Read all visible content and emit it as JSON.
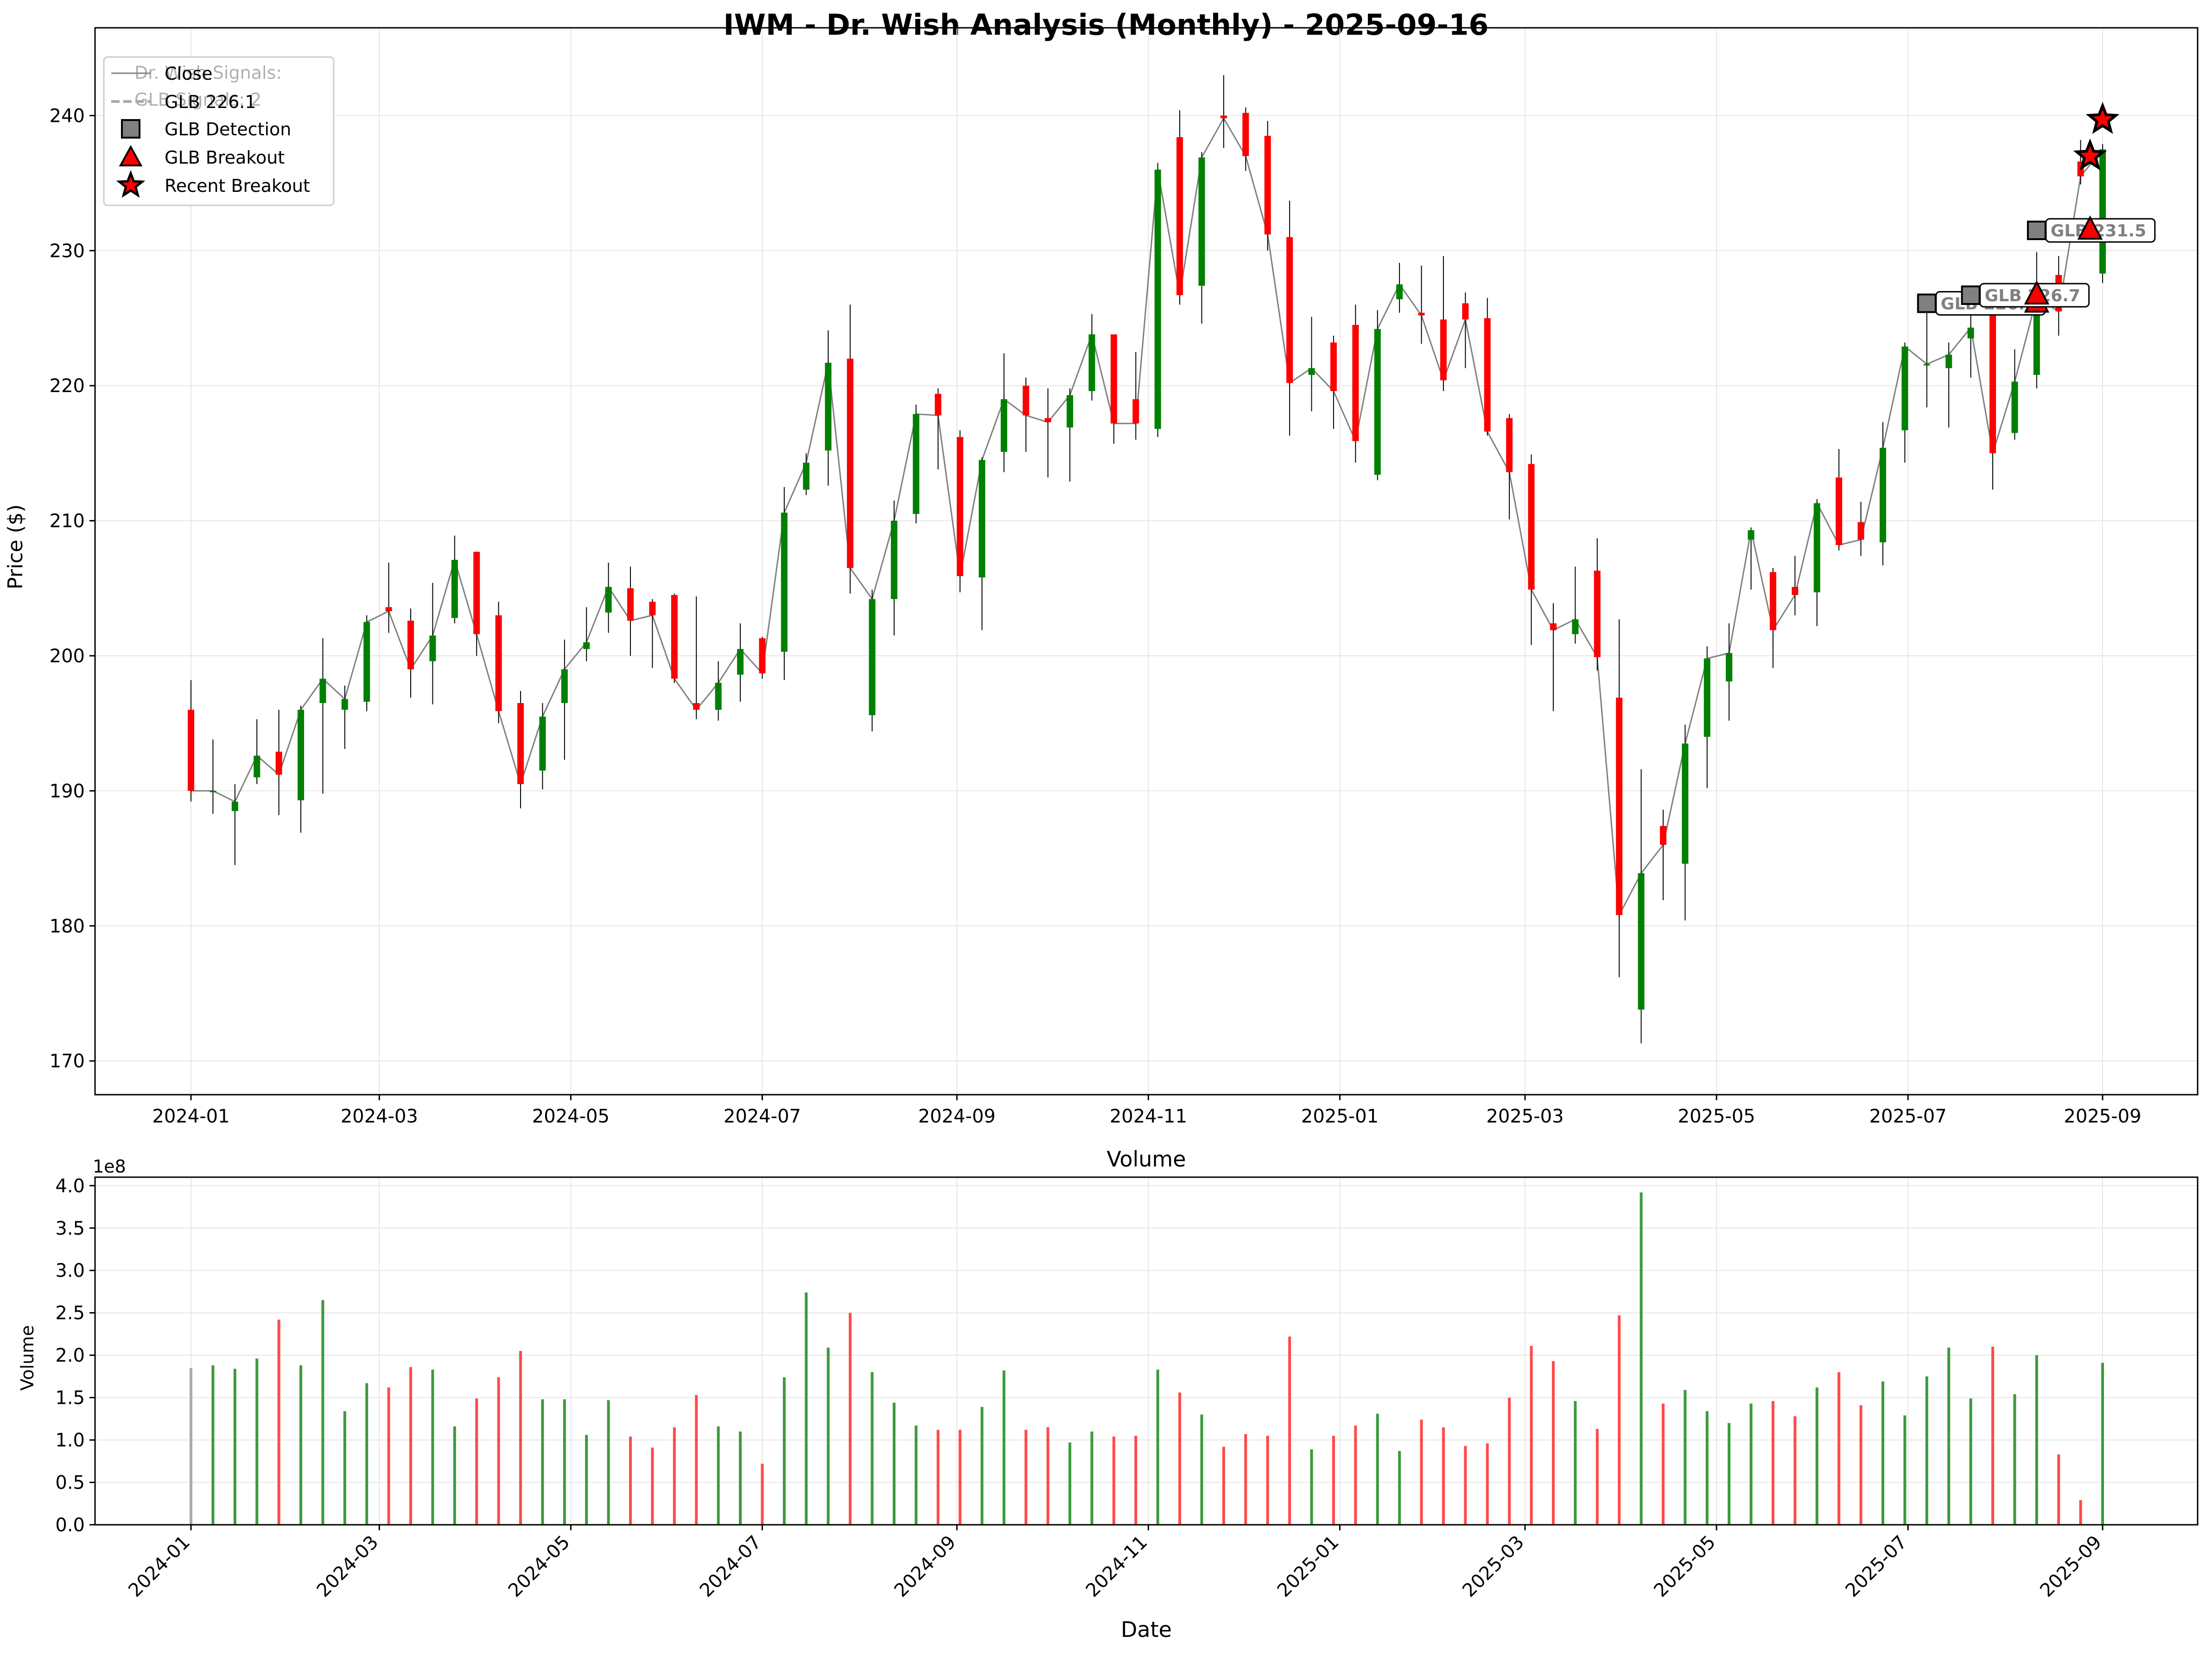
{
  "colors": {
    "up": "#008000",
    "down": "#ff0000",
    "close_line": "#808080",
    "detection_fill": "#808080",
    "breakout_fill": "#ff0000",
    "grid": "#e6e6e6"
  },
  "chart_data": [
    {
      "type": "candlestick",
      "title": "IWM - Dr. Wish Analysis (Monthly) - 2025-09-16",
      "xlabel": "",
      "ylabel": "Price ($)",
      "ylim": [
        167.5,
        246.5
      ],
      "y_ticks": [
        170,
        180,
        190,
        200,
        210,
        220,
        230,
        240
      ],
      "x_ticks": [
        "2024-01",
        "2024-03",
        "2024-05",
        "2024-07",
        "2024-09",
        "2024-11",
        "2025-01",
        "2025-03",
        "2025-05",
        "2025-07",
        "2025-09"
      ],
      "grid": true,
      "legend_position": "top-left",
      "legend": [
        "Close",
        "GLB 226.1",
        "GLB Detection",
        "GLB Breakout",
        "Recent Breakout"
      ],
      "info_box_partial_text": [
        "Dr. Wish Signals:",
        "GLB Signals: 2"
      ],
      "series": [
        {
          "date": "2024-01-01",
          "o": 196.0,
          "h": 198.2,
          "l": 189.2,
          "c": 190.0
        },
        {
          "date": "2024-01-08",
          "o": 190.0,
          "h": 193.8,
          "l": 188.3,
          "c": 190.0
        },
        {
          "date": "2024-01-15",
          "o": 188.5,
          "h": 190.5,
          "l": 184.5,
          "c": 189.2
        },
        {
          "date": "2024-01-22",
          "o": 191.0,
          "h": 195.3,
          "l": 190.5,
          "c": 192.6
        },
        {
          "date": "2024-01-29",
          "o": 192.9,
          "h": 196.0,
          "l": 188.2,
          "c": 191.2
        },
        {
          "date": "2024-02-05",
          "o": 189.3,
          "h": 196.3,
          "l": 186.9,
          "c": 196.0
        },
        {
          "date": "2024-02-12",
          "o": 196.5,
          "h": 201.3,
          "l": 189.8,
          "c": 198.3
        },
        {
          "date": "2024-02-19",
          "o": 196.0,
          "h": 197.8,
          "l": 193.1,
          "c": 196.8
        },
        {
          "date": "2024-02-26",
          "o": 196.6,
          "h": 203.0,
          "l": 195.9,
          "c": 202.5
        },
        {
          "date": "2024-03-04",
          "o": 203.6,
          "h": 206.9,
          "l": 201.7,
          "c": 203.3
        },
        {
          "date": "2024-03-11",
          "o": 202.6,
          "h": 203.5,
          "l": 196.9,
          "c": 199.0
        },
        {
          "date": "2024-03-18",
          "o": 199.6,
          "h": 205.4,
          "l": 196.4,
          "c": 201.5
        },
        {
          "date": "2024-03-25",
          "o": 202.8,
          "h": 208.9,
          "l": 202.4,
          "c": 207.1
        },
        {
          "date": "2024-04-01",
          "o": 207.7,
          "h": 207.7,
          "l": 200.0,
          "c": 201.6
        },
        {
          "date": "2024-04-08",
          "o": 203.0,
          "h": 204.0,
          "l": 195.0,
          "c": 195.9
        },
        {
          "date": "2024-04-15",
          "o": 196.5,
          "h": 197.4,
          "l": 188.7,
          "c": 190.5
        },
        {
          "date": "2024-04-22",
          "o": 191.5,
          "h": 196.5,
          "l": 190.1,
          "c": 195.5
        },
        {
          "date": "2024-04-29",
          "o": 196.5,
          "h": 201.2,
          "l": 192.3,
          "c": 199.0
        },
        {
          "date": "2024-05-06",
          "o": 200.5,
          "h": 203.6,
          "l": 199.6,
          "c": 201.0
        },
        {
          "date": "2024-05-13",
          "o": 203.2,
          "h": 206.9,
          "l": 201.7,
          "c": 205.1
        },
        {
          "date": "2024-05-20",
          "o": 205.0,
          "h": 206.6,
          "l": 200.0,
          "c": 202.6
        },
        {
          "date": "2024-05-27",
          "o": 204.0,
          "h": 204.2,
          "l": 199.1,
          "c": 203.0
        },
        {
          "date": "2024-06-03",
          "o": 204.5,
          "h": 204.6,
          "l": 198.0,
          "c": 198.3
        },
        {
          "date": "2024-06-10",
          "o": 196.5,
          "h": 204.4,
          "l": 195.3,
          "c": 196.0
        },
        {
          "date": "2024-06-17",
          "o": 196.0,
          "h": 199.6,
          "l": 195.2,
          "c": 198.0
        },
        {
          "date": "2024-06-24",
          "o": 198.6,
          "h": 202.4,
          "l": 196.6,
          "c": 200.5
        },
        {
          "date": "2024-07-01",
          "o": 201.3,
          "h": 201.4,
          "l": 198.3,
          "c": 198.7
        },
        {
          "date": "2024-07-08",
          "o": 200.3,
          "h": 212.5,
          "l": 198.2,
          "c": 210.6
        },
        {
          "date": "2024-07-15",
          "o": 212.3,
          "h": 215.0,
          "l": 211.9,
          "c": 214.3
        },
        {
          "date": "2024-07-22",
          "o": 215.2,
          "h": 224.1,
          "l": 212.6,
          "c": 221.7
        },
        {
          "date": "2024-07-29",
          "o": 222.0,
          "h": 226.0,
          "l": 204.6,
          "c": 206.5
        },
        {
          "date": "2024-08-05",
          "o": 195.6,
          "h": 204.9,
          "l": 194.4,
          "c": 204.2
        },
        {
          "date": "2024-08-12",
          "o": 204.2,
          "h": 211.5,
          "l": 201.5,
          "c": 210.0
        },
        {
          "date": "2024-08-19",
          "o": 210.5,
          "h": 218.6,
          "l": 209.8,
          "c": 217.9
        },
        {
          "date": "2024-08-26",
          "o": 219.4,
          "h": 219.8,
          "l": 213.8,
          "c": 217.8
        },
        {
          "date": "2024-09-02",
          "o": 216.2,
          "h": 216.7,
          "l": 204.7,
          "c": 205.9
        },
        {
          "date": "2024-09-09",
          "o": 205.8,
          "h": 214.7,
          "l": 201.9,
          "c": 214.5
        },
        {
          "date": "2024-09-16",
          "o": 215.1,
          "h": 222.4,
          "l": 213.6,
          "c": 219.0
        },
        {
          "date": "2024-09-23",
          "o": 220.0,
          "h": 220.6,
          "l": 215.1,
          "c": 217.8
        },
        {
          "date": "2024-09-30",
          "o": 217.6,
          "h": 219.8,
          "l": 213.2,
          "c": 217.3
        },
        {
          "date": "2024-10-07",
          "o": 216.9,
          "h": 219.8,
          "l": 212.9,
          "c": 219.3
        },
        {
          "date": "2024-10-14",
          "o": 219.6,
          "h": 225.3,
          "l": 218.9,
          "c": 223.8
        },
        {
          "date": "2024-10-21",
          "o": 223.8,
          "h": 223.8,
          "l": 215.7,
          "c": 217.2
        },
        {
          "date": "2024-10-28",
          "o": 219.0,
          "h": 222.5,
          "l": 216.0,
          "c": 217.2
        },
        {
          "date": "2024-11-04",
          "o": 216.8,
          "h": 236.5,
          "l": 216.2,
          "c": 236.0
        },
        {
          "date": "2024-11-11",
          "o": 238.4,
          "h": 240.4,
          "l": 226.0,
          "c": 226.7
        },
        {
          "date": "2024-11-18",
          "o": 227.4,
          "h": 237.3,
          "l": 224.6,
          "c": 236.9
        },
        {
          "date": "2024-11-25",
          "o": 240.0,
          "h": 243.0,
          "l": 237.6,
          "c": 239.8
        },
        {
          "date": "2024-12-02",
          "o": 240.2,
          "h": 240.6,
          "l": 235.9,
          "c": 237.0
        },
        {
          "date": "2024-12-09",
          "o": 238.5,
          "h": 239.6,
          "l": 230.0,
          "c": 231.2
        },
        {
          "date": "2024-12-16",
          "o": 231.0,
          "h": 233.7,
          "l": 216.3,
          "c": 220.2
        },
        {
          "date": "2024-12-23",
          "o": 220.8,
          "h": 225.1,
          "l": 218.1,
          "c": 221.3
        },
        {
          "date": "2024-12-30",
          "o": 223.2,
          "h": 223.7,
          "l": 216.8,
          "c": 219.6
        },
        {
          "date": "2025-01-06",
          "o": 224.5,
          "h": 226.0,
          "l": 214.3,
          "c": 215.9
        },
        {
          "date": "2025-01-13",
          "o": 213.4,
          "h": 225.6,
          "l": 213.0,
          "c": 224.2
        },
        {
          "date": "2025-01-20",
          "o": 226.4,
          "h": 229.1,
          "l": 225.4,
          "c": 227.5
        },
        {
          "date": "2025-01-27",
          "o": 225.4,
          "h": 228.9,
          "l": 223.1,
          "c": 225.2
        },
        {
          "date": "2025-02-03",
          "o": 224.9,
          "h": 229.6,
          "l": 219.6,
          "c": 220.4
        },
        {
          "date": "2025-02-10",
          "o": 226.1,
          "h": 226.9,
          "l": 221.3,
          "c": 224.9
        },
        {
          "date": "2025-02-17",
          "o": 225.0,
          "h": 226.5,
          "l": 216.3,
          "c": 216.6
        },
        {
          "date": "2025-02-24",
          "o": 217.6,
          "h": 217.9,
          "l": 210.1,
          "c": 213.6
        },
        {
          "date": "2025-03-03",
          "o": 214.2,
          "h": 214.9,
          "l": 200.8,
          "c": 204.9
        },
        {
          "date": "2025-03-10",
          "o": 202.4,
          "h": 203.9,
          "l": 195.9,
          "c": 201.9
        },
        {
          "date": "2025-03-17",
          "o": 201.6,
          "h": 206.6,
          "l": 200.9,
          "c": 202.7
        },
        {
          "date": "2025-03-24",
          "o": 206.3,
          "h": 208.7,
          "l": 198.9,
          "c": 199.9
        },
        {
          "date": "2025-03-31",
          "o": 196.9,
          "h": 202.7,
          "l": 176.2,
          "c": 180.8
        },
        {
          "date": "2025-04-07",
          "o": 173.8,
          "h": 191.6,
          "l": 171.3,
          "c": 183.9
        },
        {
          "date": "2025-04-14",
          "o": 187.4,
          "h": 188.6,
          "l": 181.9,
          "c": 186.0
        },
        {
          "date": "2025-04-21",
          "o": 184.6,
          "h": 194.9,
          "l": 180.4,
          "c": 193.5
        },
        {
          "date": "2025-04-28",
          "o": 194.0,
          "h": 200.7,
          "l": 190.2,
          "c": 199.8
        },
        {
          "date": "2025-05-05",
          "o": 198.1,
          "h": 202.4,
          "l": 195.2,
          "c": 200.2
        },
        {
          "date": "2025-05-12",
          "o": 208.6,
          "h": 209.5,
          "l": 204.9,
          "c": 209.3
        },
        {
          "date": "2025-05-19",
          "o": 206.2,
          "h": 206.5,
          "l": 199.1,
          "c": 201.9
        },
        {
          "date": "2025-05-26",
          "o": 205.1,
          "h": 207.4,
          "l": 203.0,
          "c": 204.5
        },
        {
          "date": "2025-06-02",
          "o": 204.7,
          "h": 211.6,
          "l": 202.2,
          "c": 211.3
        },
        {
          "date": "2025-06-09",
          "o": 213.2,
          "h": 215.3,
          "l": 207.8,
          "c": 208.2
        },
        {
          "date": "2025-06-16",
          "o": 209.9,
          "h": 211.4,
          "l": 207.4,
          "c": 208.6
        },
        {
          "date": "2025-06-23",
          "o": 208.4,
          "h": 217.3,
          "l": 206.7,
          "c": 215.4
        },
        {
          "date": "2025-06-30",
          "o": 216.7,
          "h": 223.2,
          "l": 214.3,
          "c": 222.9
        },
        {
          "date": "2025-07-07",
          "o": 221.6,
          "h": 225.5,
          "l": 218.4,
          "c": 221.6
        },
        {
          "date": "2025-07-14",
          "o": 221.3,
          "h": 223.2,
          "l": 216.9,
          "c": 222.3
        },
        {
          "date": "2025-07-21",
          "o": 223.5,
          "h": 227.4,
          "l": 220.6,
          "c": 224.3
        },
        {
          "date": "2025-07-28",
          "o": 225.5,
          "h": 226.0,
          "l": 212.3,
          "c": 215.0
        },
        {
          "date": "2025-08-04",
          "o": 216.5,
          "h": 222.7,
          "l": 216.0,
          "c": 220.3
        },
        {
          "date": "2025-08-11",
          "o": 220.8,
          "h": 229.9,
          "l": 219.8,
          "c": 226.5
        },
        {
          "date": "2025-08-18",
          "o": 228.2,
          "h": 229.6,
          "l": 223.7,
          "c": 225.5
        },
        {
          "date": "2025-08-25",
          "o": 236.6,
          "h": 238.2,
          "l": 234.9,
          "c": 235.5
        },
        {
          "date": "2025-09-01",
          "o": 228.3,
          "h": 237.9,
          "l": 227.6,
          "c": 237.5
        }
      ],
      "glb_levels": [
        {
          "label": "GLB 226.1",
          "value": 226.1,
          "detect_date": "2025-07-07",
          "breakout_date": "2025-08-11"
        },
        {
          "label": "GLB 226.7",
          "value": 226.7,
          "detect_date": "2025-07-21",
          "breakout_date": "2025-08-11"
        },
        {
          "label": "GLB 231.5",
          "value": 231.5,
          "detect_date": "2025-08-11",
          "breakout_date": "2025-08-28"
        }
      ],
      "recent_breakouts": [
        {
          "date": "2025-08-28",
          "value": 237.0
        },
        {
          "date": "2025-09-01",
          "value": 239.7
        }
      ]
    },
    {
      "type": "bar",
      "title": "Volume",
      "xlabel": "Date",
      "ylabel": "Volume",
      "y_offset_label": "1e8",
      "ylim": [
        0,
        4.1
      ],
      "y_ticks": [
        "0.0",
        "0.5",
        "1.0",
        "1.5",
        "2.0",
        "2.5",
        "3.0",
        "3.5",
        "4.0"
      ],
      "x_ticks": [
        "2024-01",
        "2024-03",
        "2024-05",
        "2024-07",
        "2024-09",
        "2024-11",
        "2025-01",
        "2025-03",
        "2025-05",
        "2025-07",
        "2025-09"
      ],
      "grid": true,
      "values_1e8": [
        1.85,
        1.88,
        1.84,
        1.96,
        2.42,
        1.88,
        2.65,
        1.34,
        1.67,
        1.62,
        1.86,
        1.83,
        1.16,
        1.49,
        1.74,
        2.05,
        1.48,
        1.48,
        1.06,
        1.47,
        1.04,
        0.91,
        1.15,
        1.53,
        1.16,
        1.1,
        0.72,
        1.74,
        2.74,
        2.09,
        2.5,
        1.8,
        1.44,
        1.17,
        1.12,
        1.12,
        1.39,
        1.82,
        1.12,
        1.15,
        0.97,
        1.1,
        1.04,
        1.05,
        1.83,
        1.56,
        1.3,
        0.92,
        1.07,
        1.05,
        2.22,
        0.89,
        1.05,
        1.17,
        1.31,
        0.87,
        1.24,
        1.15,
        0.93,
        0.96,
        1.5,
        2.11,
        1.93,
        1.46,
        1.13,
        2.47,
        3.92,
        1.43,
        1.59,
        1.34,
        1.2,
        1.43,
        1.46,
        1.28,
        1.62,
        1.8,
        1.41,
        1.69,
        1.29,
        1.75,
        2.09,
        1.49,
        2.1,
        1.54,
        2.0,
        0.83,
        0.29,
        1.91
      ]
    }
  ]
}
